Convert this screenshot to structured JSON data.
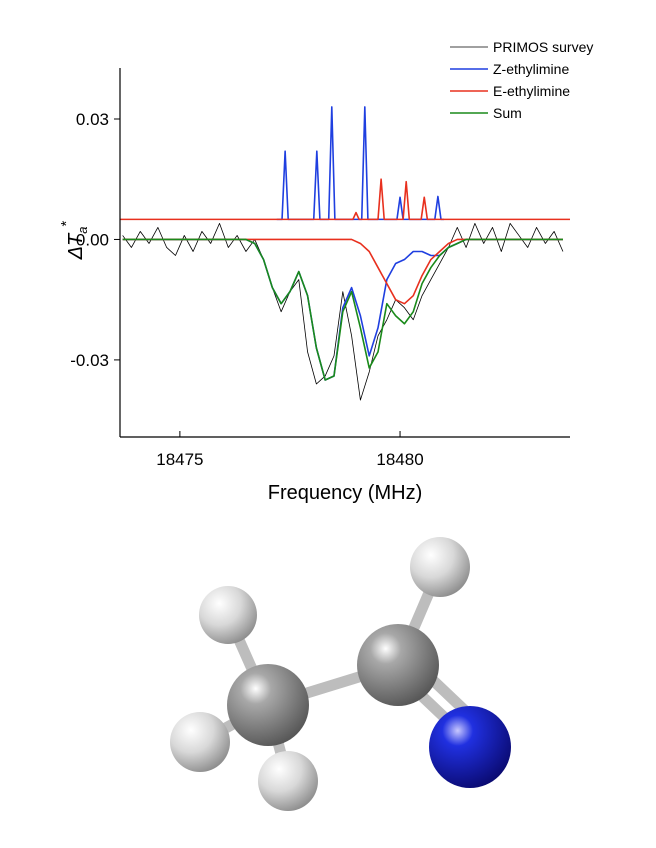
{
  "chart_data": {
    "type": "line",
    "x_label": "Frequency (MHz)",
    "y_label": {
      "main": "ΔT",
      "sub": "a",
      "sup": "*"
    },
    "xlim": [
      18473.64,
      18483.86
    ],
    "ylim": [
      -0.0492,
      0.0427
    ],
    "xticks": [
      18475,
      18480
    ],
    "yticks": [
      -0.03,
      {
        "value": 0,
        "label": "0.00"
      },
      0.03
    ],
    "legend": "top-right",
    "x": [
      18473.7,
      18473.9,
      18474.1,
      18474.3,
      18474.5,
      18474.7,
      18474.9,
      18475.1,
      18475.3,
      18475.5,
      18475.7,
      18475.9,
      18476.1,
      18476.3,
      18476.5,
      18476.7,
      18476.9,
      18477.1,
      18477.3,
      18477.5,
      18477.7,
      18477.9,
      18478.1,
      18478.3,
      18478.5,
      18478.7,
      18478.9,
      18479.1,
      18479.3,
      18479.5,
      18479.7,
      18479.9,
      18480.1,
      18480.3,
      18480.5,
      18480.7,
      18480.9,
      18481.1,
      18481.3,
      18481.5,
      18481.7,
      18481.9,
      18482.1,
      18482.3,
      18482.5,
      18482.7,
      18482.9,
      18483.1,
      18483.3,
      18483.5,
      18483.7
    ],
    "series": [
      {
        "name": "PRIMOS survey",
        "color": "#000000",
        "width": 0.8,
        "values": [
          0.001,
          -0.002,
          0.002,
          -0.001,
          0.003,
          -0.002,
          -0.004,
          0.001,
          -0.003,
          0.002,
          -0.001,
          0.004,
          -0.002,
          0.001,
          -0.003,
          0.0,
          -0.005,
          -0.012,
          -0.018,
          -0.013,
          -0.01,
          -0.028,
          -0.036,
          -0.034,
          -0.029,
          -0.013,
          -0.024,
          -0.04,
          -0.033,
          -0.024,
          -0.02,
          -0.015,
          -0.017,
          -0.02,
          -0.014,
          -0.01,
          -0.006,
          -0.002,
          0.003,
          -0.002,
          0.004,
          -0.001,
          0.003,
          -0.003,
          0.004,
          0.001,
          -0.002,
          0.003,
          -0.001,
          0.002,
          -0.003
        ]
      },
      {
        "name": "Z-ethylimine",
        "color": "#1f3fe0",
        "width": 1.6,
        "values": [
          0,
          0,
          0,
          0,
          0,
          0,
          0,
          0,
          0,
          0,
          0,
          0,
          0,
          0,
          0,
          -0.001,
          -0.005,
          -0.012,
          -0.016,
          -0.013,
          -0.008,
          -0.014,
          -0.027,
          -0.035,
          -0.034,
          -0.017,
          -0.012,
          -0.019,
          -0.029,
          -0.022,
          -0.01,
          -0.006,
          -0.005,
          -0.003,
          -0.003,
          -0.004,
          -0.004,
          -0.002,
          -0.001,
          0,
          0,
          0,
          0,
          0,
          0,
          0,
          0,
          0,
          0,
          0,
          0
        ]
      },
      {
        "name": "E-ethylimine",
        "color": "#e8301e",
        "width": 1.6,
        "values": [
          0,
          0,
          0,
          0,
          0,
          0,
          0,
          0,
          0,
          0,
          0,
          0,
          0,
          0,
          0,
          0,
          0,
          0,
          0,
          0,
          0,
          0,
          0,
          0,
          0,
          0,
          0,
          -0.001,
          -0.003,
          -0.007,
          -0.011,
          -0.015,
          -0.016,
          -0.014,
          -0.009,
          -0.005,
          -0.003,
          -0.001,
          0,
          0,
          0,
          0,
          0,
          0,
          0,
          0,
          0,
          0,
          0,
          0,
          0
        ]
      },
      {
        "name": "Sum",
        "color": "#1a8a1a",
        "width": 1.6,
        "values": [
          0,
          0,
          0,
          0,
          0,
          0,
          0,
          0,
          0,
          0,
          0,
          0,
          0,
          0,
          0,
          -0.001,
          -0.005,
          -0.012,
          -0.016,
          -0.013,
          -0.008,
          -0.014,
          -0.027,
          -0.035,
          -0.034,
          -0.018,
          -0.013,
          -0.022,
          -0.032,
          -0.028,
          -0.016,
          -0.019,
          -0.021,
          -0.018,
          -0.011,
          -0.007,
          -0.004,
          -0.002,
          -0.001,
          0,
          0,
          0,
          0,
          0,
          0,
          0,
          0,
          0,
          0,
          0,
          0
        ]
      },
      {
        "color": "#1f3fe0",
        "width": 1.6,
        "x": [
          18477.2,
          18477.32,
          18477.39,
          18477.46,
          18478.04,
          18478.11,
          18478.18,
          18478.38,
          18478.45,
          18478.52,
          18479.13,
          18479.2,
          18479.27,
          18479.93,
          18480.0,
          18480.07,
          18480.79,
          18480.86,
          18480.93,
          18481.0
        ],
        "values": [
          0.005,
          0.005,
          0.022,
          0.005,
          0.005,
          0.022,
          0.005,
          0.005,
          0.033,
          0.005,
          0.005,
          0.033,
          0.005,
          0.005,
          0.0105,
          0.005,
          0.005,
          0.0107,
          0.005,
          0.005
        ]
      },
      {
        "color": "#e8301e",
        "width": 1.6,
        "x": [
          18473.64,
          18478.93,
          18479.0,
          18479.07,
          18479.5,
          18479.57,
          18479.64,
          18480.07,
          18480.14,
          18480.21,
          18480.48,
          18480.55,
          18480.62,
          18483.86
        ],
        "values": [
          0.005,
          0.005,
          0.0067,
          0.005,
          0.005,
          0.015,
          0.005,
          0.005,
          0.0144,
          0.005,
          0.005,
          0.0105,
          0.005,
          0.005
        ]
      }
    ]
  }
}
